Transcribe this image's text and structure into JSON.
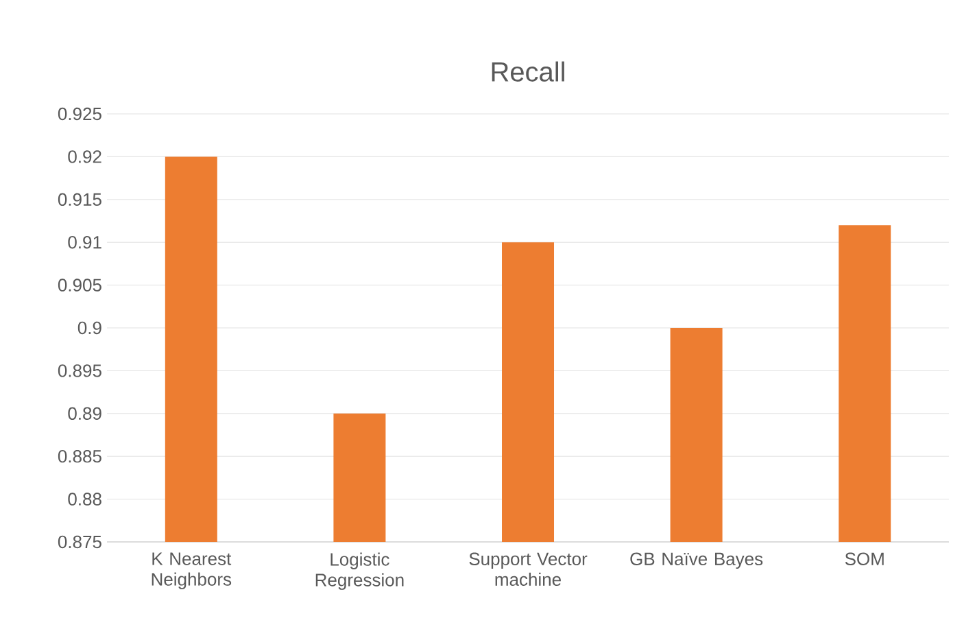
{
  "chart_data": {
    "type": "bar",
    "title": "Recall",
    "categories": [
      "K Nearest Neighbors",
      "Logistic Regression",
      "Support Vector machine",
      "GB Naïve Bayes",
      "SOM"
    ],
    "values": [
      0.92,
      0.89,
      0.91,
      0.9,
      0.912
    ],
    "color": "#ed7d31",
    "ylim": [
      0.875,
      0.925
    ],
    "yticks": [
      0.875,
      0.88,
      0.885,
      0.89,
      0.895,
      0.9,
      0.905,
      0.91,
      0.915,
      0.92,
      0.925
    ],
    "grid": "y"
  }
}
